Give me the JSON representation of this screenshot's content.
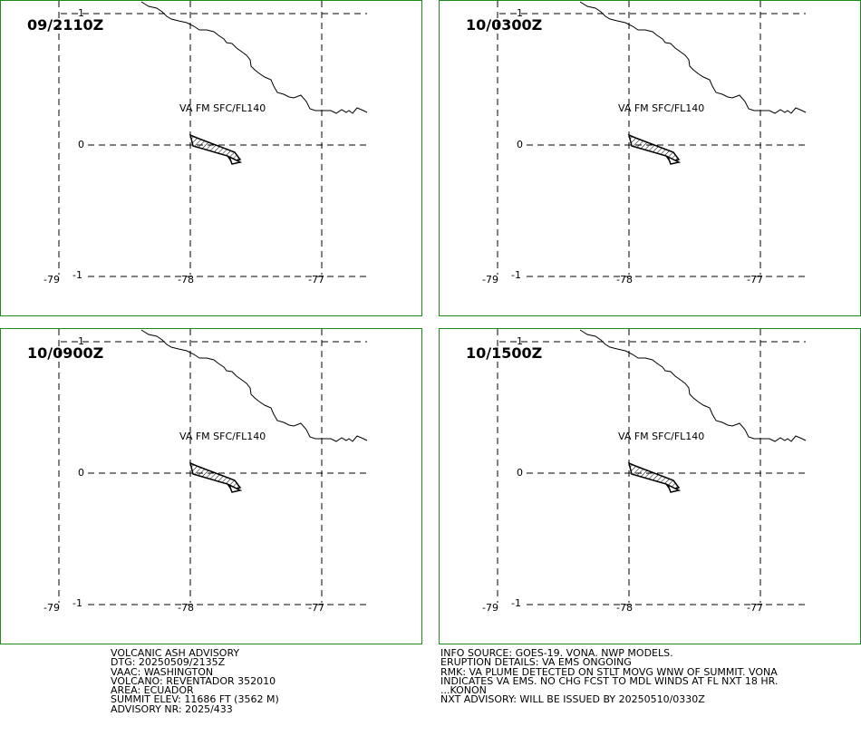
{
  "panels": [
    {
      "time": "09/2110Z",
      "plume_label": "VA FM SFC/FL140"
    },
    {
      "time": "10/0300Z",
      "plume_label": "VA FM SFC/FL140"
    },
    {
      "time": "10/0900Z",
      "plume_label": "VA FM SFC/FL140"
    },
    {
      "time": "10/1500Z",
      "plume_label": "VA FM SFC/FL140"
    }
  ],
  "axes": {
    "lat_ticks": [
      "1",
      "0",
      "-1"
    ],
    "lon_ticks": [
      "-79",
      "-78",
      "-77"
    ]
  },
  "colors": {
    "panel_border": "#1c8a1c",
    "map_lines": "#000000"
  },
  "advisory_left": [
    "VOLCANIC ASH ADVISORY",
    "DTG: 20250509/2135Z",
    "VAAC: WASHINGTON",
    "VOLCANO: REVENTADOR 352010",
    "AREA: ECUADOR",
    "SUMMIT ELEV: 11686 FT (3562 M)",
    "ADVISORY NR: 2025/433"
  ],
  "advisory_right": [
    "INFO SOURCE: GOES-19. VONA. NWP MODELS.",
    "ERUPTION DETAILS: VA EMS ONGOING",
    "RMK: VA PLUME DETECTED ON STLT MOVG WNW OF SUMMIT. VONA",
    "INDICATES VA EMS. NO CHG FCST TO MDL WINDS AT FL NXT 18 HR.",
    "...KONON",
    "NXT ADVISORY: WILL BE ISSUED BY 20250510/0330Z"
  ]
}
